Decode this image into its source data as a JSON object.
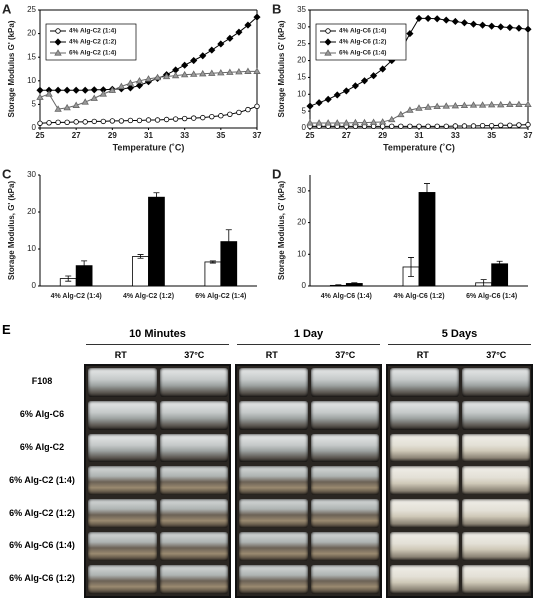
{
  "chart_data": [
    {
      "type": "line",
      "panel": "A",
      "xlabel": "Temperature (˚C)",
      "ylabel": "Storage Modulus G' (kPa)",
      "x": [
        25,
        25.5,
        26,
        26.5,
        27,
        27.5,
        28,
        28.5,
        29,
        29.5,
        30,
        30.5,
        31,
        31.5,
        32,
        32.5,
        33,
        33.5,
        34,
        34.5,
        35,
        35.5,
        36,
        36.5,
        37
      ],
      "xlim": [
        25,
        37
      ],
      "xticks": [
        25,
        27,
        29,
        31,
        33,
        35,
        37
      ],
      "ylim": [
        0,
        25
      ],
      "yticks": [
        0,
        5,
        10,
        15,
        20,
        25
      ],
      "legend": "upper left",
      "grid": false,
      "series": [
        {
          "name": "4% Alg-C2 (1:4)",
          "color": "#000000",
          "marker": "circle",
          "fill": "#ffffff",
          "values": [
            1,
            1.1,
            1.2,
            1.2,
            1.3,
            1.3,
            1.4,
            1.4,
            1.5,
            1.5,
            1.6,
            1.6,
            1.7,
            1.7,
            1.8,
            1.9,
            2,
            2.1,
            2.2,
            2.4,
            2.6,
            2.9,
            3.3,
            3.9,
            4.6
          ]
        },
        {
          "name": "4% Alg-C2 (1:2)",
          "color": "#000000",
          "marker": "diamond",
          "fill": "#000000",
          "values": [
            8,
            8,
            8,
            8,
            8,
            8,
            8.1,
            8.1,
            8.2,
            8.3,
            8.5,
            9,
            9.8,
            10.5,
            11.3,
            12.3,
            13.3,
            14.3,
            15.3,
            16.5,
            17.8,
            19,
            20.3,
            21.8,
            23.5
          ]
        },
        {
          "name": "6% Alg-C2 (1:4)",
          "color": "#666666",
          "marker": "triangle",
          "fill": "#999999",
          "values": [
            6.5,
            7.2,
            4,
            4.3,
            4.8,
            5.5,
            6.3,
            7.2,
            8,
            8.8,
            9.5,
            10,
            10.4,
            10.7,
            10.9,
            11.1,
            11.3,
            11.4,
            11.5,
            11.6,
            11.7,
            11.8,
            11.9,
            12,
            12
          ]
        }
      ]
    },
    {
      "type": "line",
      "panel": "B",
      "xlabel": "Temperature (˚C)",
      "ylabel": "Storage Modulus G' (kPa)",
      "x": [
        25,
        25.5,
        26,
        26.5,
        27,
        27.5,
        28,
        28.5,
        29,
        29.5,
        30,
        30.5,
        31,
        31.5,
        32,
        32.5,
        33,
        33.5,
        34,
        34.5,
        35,
        35.5,
        36,
        36.5,
        37
      ],
      "xlim": [
        25,
        37
      ],
      "xticks": [
        25,
        27,
        29,
        31,
        33,
        35,
        37
      ],
      "ylim": [
        0,
        35
      ],
      "yticks": [
        0,
        5,
        10,
        15,
        20,
        25,
        30,
        35
      ],
      "legend": "upper left",
      "grid": false,
      "series": [
        {
          "name": "4% Alg-C6 (1:4)",
          "color": "#000000",
          "marker": "circle",
          "fill": "#ffffff",
          "values": [
            0.5,
            0.5,
            0.5,
            0.5,
            0.5,
            0.5,
            0.5,
            0.5,
            0.5,
            0.5,
            0.5,
            0.5,
            0.5,
            0.5,
            0.5,
            0.5,
            0.6,
            0.6,
            0.6,
            0.7,
            0.7,
            0.8,
            0.8,
            0.9,
            1
          ]
        },
        {
          "name": "4% Alg-C6 (1:2)",
          "color": "#000000",
          "marker": "diamond",
          "fill": "#000000",
          "values": [
            6.5,
            7.5,
            8.5,
            9.8,
            11,
            12.5,
            14,
            15.5,
            17.5,
            20,
            23,
            28,
            32.5,
            32.5,
            32.4,
            32,
            31.6,
            31.2,
            30.8,
            30.5,
            30.2,
            30,
            29.8,
            29.6,
            29.3
          ]
        },
        {
          "name": "6% Alg-C6 (1:4)",
          "color": "#666666",
          "marker": "triangle",
          "fill": "#999999",
          "values": [
            1.5,
            1.5,
            1.5,
            1.5,
            1.5,
            1.6,
            1.6,
            1.7,
            1.8,
            2.5,
            4,
            5.3,
            5.9,
            6.2,
            6.4,
            6.5,
            6.6,
            6.7,
            6.8,
            6.8,
            6.9,
            6.9,
            7,
            7,
            7
          ]
        }
      ]
    },
    {
      "type": "bar",
      "panel": "C",
      "ylabel": "Storage Modulus, G' (kPa)",
      "categories": [
        "4% Alg-C2 (1:4)",
        "4% Alg-C2 (1:2)",
        "6% Alg-C2 (1:4)"
      ],
      "ylim": [
        0,
        30
      ],
      "yticks": [
        0,
        10,
        20,
        30
      ],
      "grid": false,
      "series": [
        {
          "color": "#ffffff",
          "values": [
            2,
            8,
            6.5
          ],
          "errors": [
            0.7,
            0.5,
            0.3
          ]
        },
        {
          "color": "#000000",
          "values": [
            5.5,
            24,
            12
          ],
          "errors": [
            1.3,
            1.2,
            3.2
          ]
        }
      ]
    },
    {
      "type": "bar",
      "panel": "D",
      "ylabel": "Storage Modulus, G' (kPa)",
      "categories": [
        "4% Alg-C6 (1:4)",
        "4% Alg-C6 (1:2)",
        "6% Alg-C6 (1:4)"
      ],
      "ylim": [
        0,
        35
      ],
      "yticks": [
        0,
        10,
        20,
        30
      ],
      "grid": false,
      "series": [
        {
          "color": "#ffffff",
          "values": [
            0.2,
            6,
            1
          ],
          "errors": [
            0.2,
            3,
            1
          ]
        },
        {
          "color": "#000000",
          "values": [
            0.8,
            29.5,
            7
          ],
          "errors": [
            0.2,
            2.8,
            0.8
          ]
        }
      ]
    }
  ],
  "photo_panel": {
    "panel": "E",
    "time_points": [
      {
        "label": "10 Minutes",
        "conditions": [
          "RT",
          "37°C"
        ]
      },
      {
        "label": "1 Day",
        "conditions": [
          "RT",
          "37°C"
        ]
      },
      {
        "label": "5 Days",
        "conditions": [
          "RT",
          "37°C"
        ]
      }
    ],
    "rows": [
      "F108",
      "6% Alg-C6",
      "6% Alg-C2",
      "6% Alg-C2 (1:4)",
      "6% Alg-C2 (1:2)",
      "6% Alg-C6 (1:4)",
      "6% Alg-C6 (1:2)"
    ]
  }
}
